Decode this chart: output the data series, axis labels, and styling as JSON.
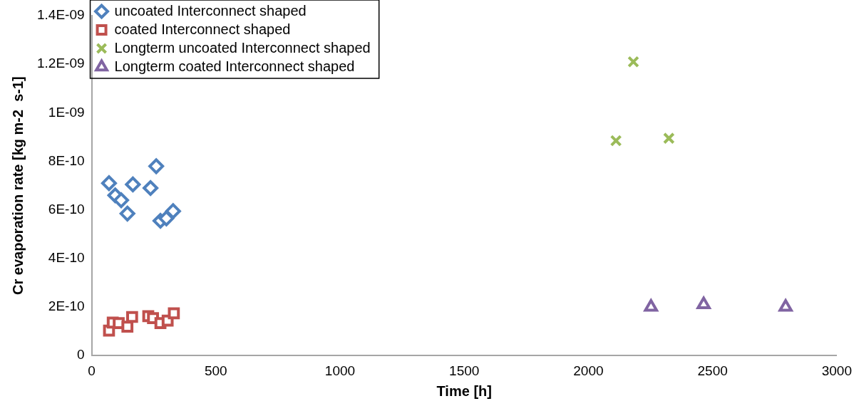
{
  "chart_data": {
    "type": "scatter",
    "xlabel": "Time [h]",
    "ylabel": "Cr evaporation rate [kg m-2  s-1]",
    "xlim": [
      0,
      3000
    ],
    "xticks": [
      0,
      500,
      1000,
      1500,
      2000,
      2500,
      3000
    ],
    "ylim": [
      0,
      1.4e-09
    ],
    "yticks": [
      0,
      {
        "value": 2e-10,
        "label": "2E-10"
      },
      {
        "value": 4e-10,
        "label": "4E-10"
      },
      {
        "value": 6e-10,
        "label": "6E-10"
      },
      {
        "value": 8e-10,
        "label": "8E-10"
      },
      {
        "value": 1e-09,
        "label": "1E-09"
      },
      {
        "value": 1.2e-09,
        "label": "1.2E-09"
      },
      {
        "value": 1.4e-09,
        "label": "1.4E-09"
      }
    ],
    "grid": false,
    "legend": "top left",
    "series": [
      {
        "name": "uncoated Interconnect shaped",
        "color": "#4f81bd",
        "marker": "diamond",
        "x": [
          70,
          95,
          119,
          144,
          166,
          237,
          260,
          277,
          301,
          328
        ],
        "values": [
          7.1e-10,
          6.6e-10,
          6.4e-10,
          5.85e-10,
          7.05e-10,
          6.9e-10,
          7.8e-10,
          5.55e-10,
          5.65e-10,
          5.95e-10
        ]
      },
      {
        "name": "coated Interconnect shaped",
        "color": "#c0504d",
        "marker": "square",
        "x": [
          70,
          85,
          109,
          144,
          163,
          228,
          247,
          277,
          306,
          331
        ],
        "values": [
          1.03e-10,
          1.36e-10,
          1.34e-10,
          1.19e-10,
          1.59e-10,
          1.62e-10,
          1.54e-10,
          1.34e-10,
          1.44e-10,
          1.74e-10
        ]
      },
      {
        "name": "Longterm uncoated Interconnect shaped",
        "color": "#9bbb59",
        "marker": "cross",
        "x": [
          2181,
          2111,
          2324
        ],
        "values": [
          1.21e-09,
          8.85e-10,
          8.95e-10
        ]
      },
      {
        "name": "Longterm coated Interconnect shaped",
        "color": "#8064a2",
        "marker": "triangle",
        "x": [
          2252,
          2464,
          2794
        ],
        "values": [
          2e-10,
          2.1e-10,
          2e-10
        ]
      }
    ]
  }
}
